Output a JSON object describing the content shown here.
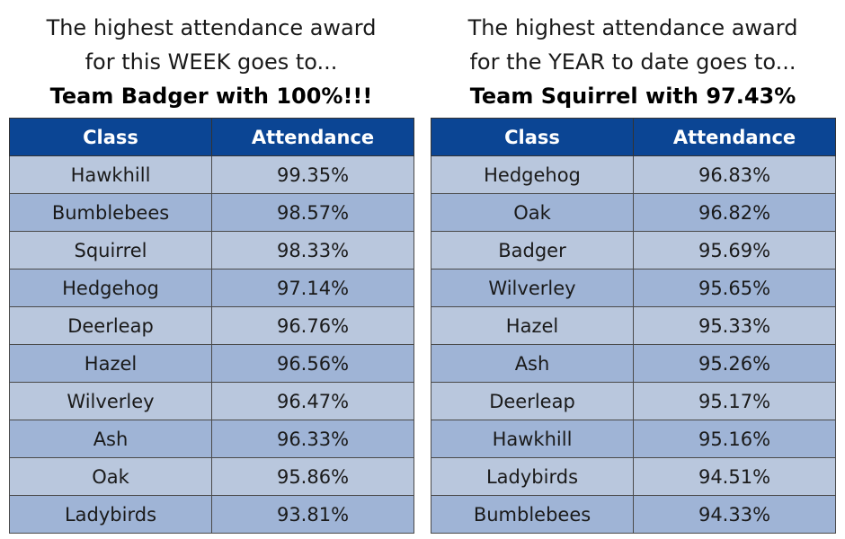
{
  "week_panel": {
    "heading_line1": "The highest attendance award",
    "heading_line2": "for this WEEK goes to...",
    "winner": "Team Badger with 100%!!!",
    "columns": [
      "Class",
      "Attendance"
    ],
    "rows": [
      {
        "class": "Hawkhill",
        "attendance": "99.35%"
      },
      {
        "class": "Bumblebees",
        "attendance": "98.57%"
      },
      {
        "class": "Squirrel",
        "attendance": "98.33%"
      },
      {
        "class": "Hedgehog",
        "attendance": "97.14%"
      },
      {
        "class": "Deerleap",
        "attendance": "96.76%"
      },
      {
        "class": "Hazel",
        "attendance": "96.56%"
      },
      {
        "class": "Wilverley",
        "attendance": "96.47%"
      },
      {
        "class": "Ash",
        "attendance": "96.33%"
      },
      {
        "class": "Oak",
        "attendance": "95.86%"
      },
      {
        "class": "Ladybirds",
        "attendance": "93.81%"
      }
    ]
  },
  "year_panel": {
    "heading_line1": "The highest attendance award",
    "heading_line2": "for the YEAR to date goes to...",
    "winner": "Team Squirrel with 97.43%",
    "columns": [
      "Class",
      "Attendance"
    ],
    "rows": [
      {
        "class": "Hedgehog",
        "attendance": "96.83%"
      },
      {
        "class": "Oak",
        "attendance": "96.82%"
      },
      {
        "class": "Badger",
        "attendance": "95.69%"
      },
      {
        "class": "Wilverley",
        "attendance": "95.65%"
      },
      {
        "class": "Hazel",
        "attendance": "95.33%"
      },
      {
        "class": "Ash",
        "attendance": "95.26%"
      },
      {
        "class": "Deerleap",
        "attendance": "95.17%"
      },
      {
        "class": "Hawkhill",
        "attendance": "95.16%"
      },
      {
        "class": "Ladybirds",
        "attendance": "94.51%"
      },
      {
        "class": "Bumblebees",
        "attendance": "94.33%"
      }
    ]
  },
  "colors": {
    "header_background": "#0b4594",
    "header_text": "#ffffff",
    "row_light": "#b9c7dd",
    "row_dark": "#9fb4d6"
  }
}
